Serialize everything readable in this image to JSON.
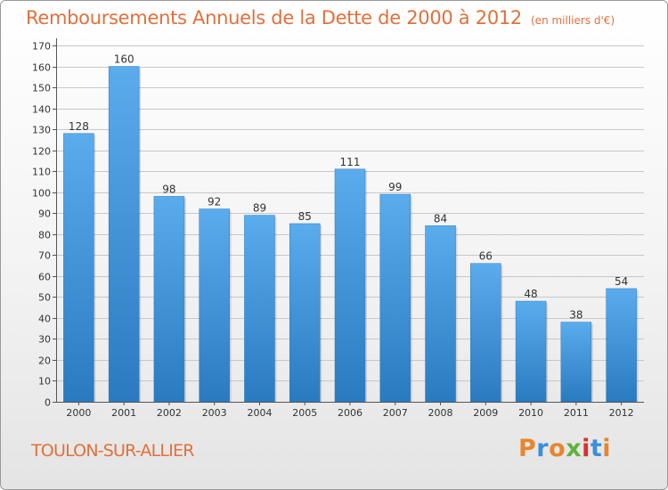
{
  "chart_data": {
    "type": "bar",
    "title": "Remboursements Annuels de la Dette de 2000 à 2012",
    "unit_label": "(en milliers d'€)",
    "categories": [
      "2000",
      "2001",
      "2002",
      "2003",
      "2004",
      "2005",
      "2006",
      "2007",
      "2008",
      "2009",
      "2010",
      "2011",
      "2012"
    ],
    "values": [
      128,
      160,
      98,
      92,
      89,
      85,
      111,
      99,
      84,
      66,
      48,
      38,
      54
    ],
    "yticks": [
      0,
      10,
      20,
      30,
      40,
      50,
      60,
      70,
      80,
      90,
      100,
      110,
      120,
      130,
      140,
      150,
      160,
      170
    ],
    "ylim": [
      0,
      170
    ],
    "grid": true,
    "bar_color": "#4d9fe0",
    "bar_color_dark": "#2a7ac0"
  },
  "footer": {
    "city": "TOULON-SUR-ALLIER",
    "brand": "Proxiti",
    "brand_colors": [
      "#e8862e",
      "#3a8fd8",
      "#e8862e",
      "#5fb33b",
      "#d9322b",
      "#3a8fd8",
      "#e8862e"
    ]
  },
  "colors": {
    "title": "#e2703a",
    "grid": "#c8c8c8",
    "axis": "#555555"
  }
}
